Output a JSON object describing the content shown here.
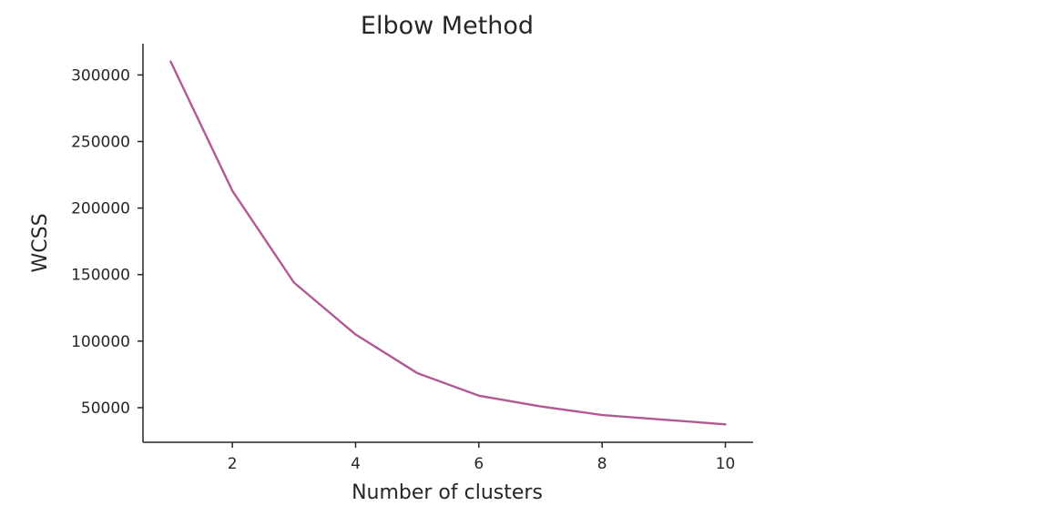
{
  "chart_data": {
    "type": "line",
    "title": "Elbow Method",
    "xlabel": "Number of clusters",
    "ylabel": "WCSS",
    "x": [
      1,
      2,
      3,
      4,
      5,
      6,
      7,
      8,
      9,
      10
    ],
    "series": [
      {
        "values": [
          310000,
          213000,
          144000,
          105000,
          76000,
          59000,
          51000,
          44500,
          41000,
          37500
        ],
        "color": "#b05a93"
      }
    ],
    "xticks": [
      2,
      4,
      6,
      8,
      10
    ],
    "yticks": [
      50000,
      100000,
      150000,
      200000,
      250000,
      300000
    ],
    "xtick_labels": [
      "2",
      "4",
      "6",
      "8",
      "10"
    ],
    "ytick_labels": [
      "50000",
      "100000",
      "150000",
      "200000",
      "250000",
      "300000"
    ],
    "xlim": [
      0.55,
      10.45
    ],
    "ylim": [
      24000,
      323500
    ],
    "grid": false,
    "spines": [
      "left",
      "bottom"
    ]
  }
}
